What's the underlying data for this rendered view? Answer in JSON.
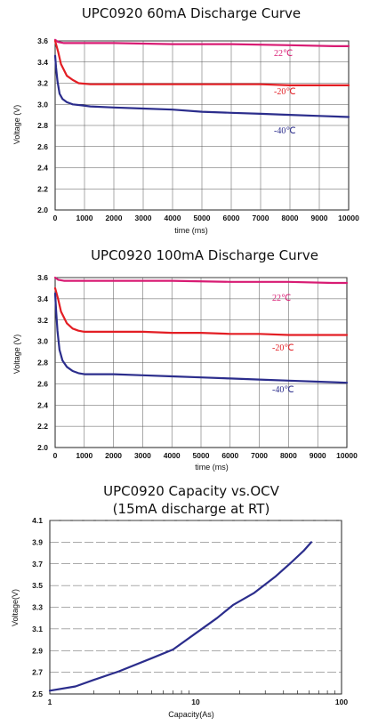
{
  "chart_data": [
    {
      "type": "line",
      "title": "UPC0920 60mA Discharge Curve",
      "xlabel": "time (ms)",
      "ylabel": "Voltage (V)",
      "xlim": [
        0,
        10000
      ],
      "ylim": [
        2.0,
        3.6
      ],
      "x_ticks": [
        0,
        1000,
        2000,
        3000,
        4000,
        5000,
        6000,
        7000,
        8000,
        9000,
        10000
      ],
      "y_ticks": [
        2.0,
        2.2,
        2.4,
        2.6,
        2.8,
        3.0,
        3.2,
        3.4,
        3.6
      ],
      "grid": "both",
      "series": [
        {
          "name": "22℃",
          "color": "#d81b73",
          "x": [
            0,
            100,
            300,
            1000,
            2000,
            4000,
            6000,
            8000,
            9500,
            10000
          ],
          "y": [
            3.61,
            3.59,
            3.58,
            3.58,
            3.58,
            3.57,
            3.57,
            3.56,
            3.55,
            3.55
          ]
        },
        {
          "name": "-20℃",
          "color": "#e31e24",
          "x": [
            0,
            100,
            200,
            400,
            600,
            800,
            1200,
            1500,
            2000,
            3000,
            4000,
            5000,
            6000,
            7000,
            8000,
            9000,
            10000
          ],
          "y": [
            3.6,
            3.5,
            3.38,
            3.27,
            3.23,
            3.2,
            3.19,
            3.19,
            3.19,
            3.19,
            3.19,
            3.19,
            3.19,
            3.19,
            3.18,
            3.18,
            3.18
          ]
        },
        {
          "name": "-40℃",
          "color": "#2b2d8c",
          "x": [
            0,
            30,
            80,
            150,
            250,
            400,
            600,
            900,
            1200,
            2000,
            3000,
            4000,
            5000,
            6000,
            7000,
            8000,
            9000,
            10000
          ],
          "y": [
            3.46,
            3.35,
            3.22,
            3.1,
            3.05,
            3.02,
            3.0,
            2.99,
            2.98,
            2.97,
            2.96,
            2.95,
            2.93,
            2.92,
            2.91,
            2.9,
            2.89,
            2.88
          ]
        }
      ]
    },
    {
      "type": "line",
      "title": "UPC0920 100mA  Discharge Curve",
      "xlabel": "time (ms)",
      "ylabel": "Voltage (V)",
      "xlim": [
        0,
        10000
      ],
      "ylim": [
        2.0,
        3.6
      ],
      "x_ticks": [
        0,
        1000,
        2000,
        3000,
        4000,
        5000,
        6000,
        7000,
        8000,
        9000,
        10000
      ],
      "y_ticks": [
        2.0,
        2.2,
        2.4,
        2.6,
        2.8,
        3.0,
        3.2,
        3.4,
        3.6
      ],
      "grid": "both",
      "series": [
        {
          "name": "22℃",
          "color": "#d81b73",
          "x": [
            0,
            100,
            300,
            1000,
            2000,
            4000,
            6000,
            8000,
            9500,
            10000
          ],
          "y": [
            3.6,
            3.58,
            3.57,
            3.57,
            3.57,
            3.57,
            3.56,
            3.56,
            3.55,
            3.55
          ]
        },
        {
          "name": "-20℃",
          "color": "#e31e24",
          "x": [
            0,
            100,
            200,
            400,
            600,
            800,
            1000,
            1500,
            2000,
            3000,
            4000,
            5000,
            6000,
            7000,
            8000,
            9000,
            10000
          ],
          "y": [
            3.5,
            3.4,
            3.28,
            3.17,
            3.12,
            3.1,
            3.09,
            3.09,
            3.09,
            3.09,
            3.08,
            3.08,
            3.07,
            3.07,
            3.06,
            3.06,
            3.06
          ]
        },
        {
          "name": "-40℃",
          "color": "#2b2d8c",
          "x": [
            0,
            30,
            80,
            150,
            250,
            400,
            600,
            800,
            1000,
            2000,
            3000,
            4000,
            5000,
            6000,
            7000,
            8000,
            9000,
            10000
          ],
          "y": [
            3.45,
            3.3,
            3.1,
            2.92,
            2.82,
            2.76,
            2.72,
            2.7,
            2.69,
            2.69,
            2.68,
            2.67,
            2.66,
            2.65,
            2.64,
            2.63,
            2.62,
            2.61
          ]
        }
      ]
    },
    {
      "type": "line",
      "title": "UPC0920 Capacity vs.OCV",
      "subtitle": "(15mA discharge at RT)",
      "xlabel": "Capacity(As)",
      "ylabel": "Voltage(V)",
      "x_scale": "log",
      "xlim": [
        1,
        100
      ],
      "ylim": [
        2.5,
        4.1
      ],
      "x_ticks": [
        1,
        10,
        100
      ],
      "y_ticks": [
        2.5,
        2.7,
        2.9,
        3.1,
        3.3,
        3.5,
        3.7,
        3.9,
        4.1
      ],
      "grid": "horizontal-dashed",
      "series": [
        {
          "color": "#2b2d8c",
          "x": [
            1,
            1.5,
            2,
            3,
            5,
            7,
            10,
            14,
            18,
            25,
            35,
            45,
            55,
            62
          ],
          "y": [
            2.53,
            2.57,
            2.63,
            2.71,
            2.83,
            2.91,
            3.06,
            3.2,
            3.32,
            3.43,
            3.58,
            3.71,
            3.82,
            3.9
          ]
        }
      ]
    }
  ]
}
